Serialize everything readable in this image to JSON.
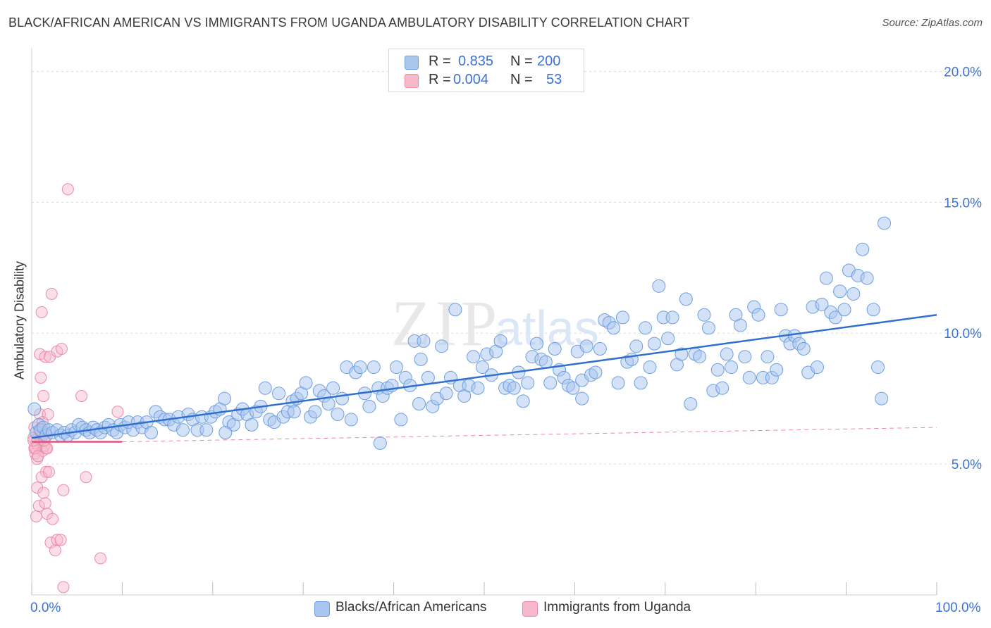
{
  "header": {
    "title": "BLACK/AFRICAN AMERICAN VS IMMIGRANTS FROM UGANDA AMBULATORY DISABILITY CORRELATION CHART",
    "source": "Source: ZipAtlas.com"
  },
  "watermark": "ZIPatlas",
  "legend_top": {
    "rows": [
      {
        "r_label": "R =",
        "r_value": "0.835",
        "n_label": "N =",
        "n_value": "200"
      },
      {
        "r_label": "R =",
        "r_value": "0.004",
        "n_label": "N =",
        "n_value": "53"
      }
    ]
  },
  "legend_bottom": {
    "items": [
      {
        "label": "Blacks/African Americans"
      },
      {
        "label": "Immigrants from Uganda"
      }
    ]
  },
  "colors": {
    "blue_fill": "#a9c6ef",
    "blue_stroke": "#6d9ee0",
    "blue_line": "#2f6fd0",
    "pink_fill": "#f7b8cb",
    "pink_stroke": "#ec8aa8",
    "pink_line": "#e0547e",
    "tick_text": "#3a72d8",
    "grid": "#dcdcdc"
  },
  "chart_data": {
    "type": "scatter",
    "title": "BLACK/AFRICAN AMERICAN VS IMMIGRANTS FROM UGANDA AMBULATORY DISABILITY CORRELATION CHART",
    "xlabel": "",
    "ylabel": "Ambulatory Disability",
    "xlim": [
      0,
      100
    ],
    "ylim": [
      0,
      20.9
    ],
    "x_tick_labels": [
      "0.0%",
      "100.0%"
    ],
    "y_ticks": [
      5,
      10,
      15,
      20
    ],
    "y_tick_labels": [
      "5.0%",
      "10.0%",
      "15.0%",
      "20.0%"
    ],
    "grid": true,
    "legend_position": "top-center",
    "series": [
      {
        "name": "Blacks/African Americans",
        "r": 0.835,
        "n": 200,
        "trend": {
          "x": [
            0,
            100
          ],
          "y": [
            6.0,
            10.7
          ]
        },
        "points": [
          [
            0.3,
            7.1
          ],
          [
            0.5,
            6.2
          ],
          [
            0.8,
            6.5
          ],
          [
            1.0,
            6.3
          ],
          [
            1.3,
            6.4
          ],
          [
            1.6,
            6.1
          ],
          [
            1.9,
            6.3
          ],
          [
            2.3,
            6.2
          ],
          [
            2.8,
            6.3
          ],
          [
            3.2,
            6.1
          ],
          [
            3.6,
            6.2
          ],
          [
            4.0,
            6.1
          ],
          [
            4.4,
            6.3
          ],
          [
            4.8,
            6.2
          ],
          [
            5.2,
            6.5
          ],
          [
            5.6,
            6.4
          ],
          [
            6.0,
            6.3
          ],
          [
            6.4,
            6.2
          ],
          [
            6.8,
            6.4
          ],
          [
            7.2,
            6.3
          ],
          [
            7.6,
            6.2
          ],
          [
            8.1,
            6.4
          ],
          [
            8.5,
            6.5
          ],
          [
            9.0,
            6.3
          ],
          [
            9.4,
            6.2
          ],
          [
            9.8,
            6.5
          ],
          [
            10.3,
            6.4
          ],
          [
            10.7,
            6.6
          ],
          [
            11.2,
            6.3
          ],
          [
            11.7,
            6.6
          ],
          [
            12.2,
            6.4
          ],
          [
            12.7,
            6.6
          ],
          [
            13.2,
            6.2
          ],
          [
            13.7,
            7.0
          ],
          [
            14.2,
            6.8
          ],
          [
            14.7,
            6.7
          ],
          [
            15.2,
            6.7
          ],
          [
            15.7,
            6.5
          ],
          [
            16.2,
            6.8
          ],
          [
            16.7,
            6.3
          ],
          [
            17.3,
            6.9
          ],
          [
            17.8,
            6.7
          ],
          [
            18.3,
            6.3
          ],
          [
            18.8,
            6.8
          ],
          [
            19.3,
            6.3
          ],
          [
            19.8,
            6.8
          ],
          [
            20.3,
            7.0
          ],
          [
            20.8,
            7.1
          ],
          [
            21.3,
            7.5
          ],
          [
            21.8,
            6.6
          ],
          [
            22.3,
            6.5
          ],
          [
            22.8,
            6.9
          ],
          [
            23.3,
            7.1
          ],
          [
            23.8,
            6.9
          ],
          [
            24.3,
            6.5
          ],
          [
            24.8,
            7.0
          ],
          [
            25.3,
            7.2
          ],
          [
            25.8,
            7.9
          ],
          [
            26.3,
            6.7
          ],
          [
            26.8,
            6.6
          ],
          [
            27.3,
            7.7
          ],
          [
            27.8,
            6.8
          ],
          [
            28.3,
            7.0
          ],
          [
            28.8,
            7.4
          ],
          [
            29.3,
            7.5
          ],
          [
            29.8,
            7.7
          ],
          [
            30.3,
            8.1
          ],
          [
            30.8,
            6.8
          ],
          [
            31.3,
            7.0
          ],
          [
            31.8,
            7.8
          ],
          [
            32.3,
            7.6
          ],
          [
            32.8,
            7.3
          ],
          [
            33.3,
            7.9
          ],
          [
            33.8,
            6.9
          ],
          [
            34.3,
            7.5
          ],
          [
            34.8,
            8.7
          ],
          [
            35.3,
            6.7
          ],
          [
            35.8,
            8.5
          ],
          [
            36.3,
            8.7
          ],
          [
            36.8,
            7.7
          ],
          [
            37.3,
            7.2
          ],
          [
            37.8,
            8.7
          ],
          [
            38.3,
            7.9
          ],
          [
            38.8,
            7.6
          ],
          [
            39.3,
            7.9
          ],
          [
            39.8,
            8.0
          ],
          [
            40.3,
            8.7
          ],
          [
            40.8,
            6.7
          ],
          [
            41.3,
            8.3
          ],
          [
            41.8,
            8.0
          ],
          [
            42.3,
            9.7
          ],
          [
            42.8,
            7.3
          ],
          [
            43.3,
            9.7
          ],
          [
            43.8,
            8.3
          ],
          [
            44.3,
            7.2
          ],
          [
            44.8,
            7.5
          ],
          [
            45.3,
            9.5
          ],
          [
            45.8,
            7.7
          ],
          [
            46.3,
            8.3
          ],
          [
            46.8,
            10.9
          ],
          [
            47.3,
            8.0
          ],
          [
            47.8,
            7.6
          ],
          [
            48.3,
            8.0
          ],
          [
            48.8,
            9.1
          ],
          [
            49.3,
            7.9
          ],
          [
            49.8,
            8.7
          ],
          [
            50.3,
            9.2
          ],
          [
            50.8,
            8.4
          ],
          [
            51.3,
            9.3
          ],
          [
            51.8,
            9.7
          ],
          [
            52.3,
            7.9
          ],
          [
            52.8,
            8.0
          ],
          [
            53.3,
            7.9
          ],
          [
            53.8,
            8.5
          ],
          [
            54.3,
            7.4
          ],
          [
            54.8,
            8.1
          ],
          [
            55.3,
            9.1
          ],
          [
            55.8,
            9.6
          ],
          [
            56.3,
            9.0
          ],
          [
            56.8,
            8.9
          ],
          [
            57.3,
            8.1
          ],
          [
            57.8,
            9.4
          ],
          [
            58.3,
            8.6
          ],
          [
            58.8,
            8.3
          ],
          [
            59.3,
            8.0
          ],
          [
            59.8,
            7.9
          ],
          [
            60.3,
            9.3
          ],
          [
            60.8,
            8.2
          ],
          [
            61.3,
            9.5
          ],
          [
            61.8,
            8.4
          ],
          [
            62.3,
            8.5
          ],
          [
            62.8,
            9.4
          ],
          [
            63.3,
            10.5
          ],
          [
            63.8,
            10.4
          ],
          [
            64.3,
            10.2
          ],
          [
            64.8,
            8.1
          ],
          [
            65.3,
            10.6
          ],
          [
            65.8,
            8.9
          ],
          [
            66.3,
            9.0
          ],
          [
            66.8,
            9.5
          ],
          [
            67.3,
            8.1
          ],
          [
            67.8,
            10.2
          ],
          [
            68.3,
            8.7
          ],
          [
            68.8,
            9.6
          ],
          [
            69.3,
            11.8
          ],
          [
            69.8,
            10.6
          ],
          [
            70.3,
            9.8
          ],
          [
            70.8,
            10.6
          ],
          [
            71.3,
            8.8
          ],
          [
            71.8,
            9.2
          ],
          [
            72.3,
            11.3
          ],
          [
            72.8,
            7.3
          ],
          [
            73.3,
            9.2
          ],
          [
            73.8,
            9.1
          ],
          [
            74.3,
            10.7
          ],
          [
            74.8,
            10.2
          ],
          [
            75.3,
            7.8
          ],
          [
            75.8,
            8.6
          ],
          [
            76.3,
            7.9
          ],
          [
            76.8,
            9.2
          ],
          [
            77.3,
            8.7
          ],
          [
            77.8,
            10.7
          ],
          [
            78.3,
            10.3
          ],
          [
            78.8,
            9.1
          ],
          [
            79.3,
            8.3
          ],
          [
            79.8,
            11.0
          ],
          [
            80.3,
            10.7
          ],
          [
            80.8,
            8.3
          ],
          [
            81.3,
            9.1
          ],
          [
            81.8,
            8.3
          ],
          [
            82.3,
            8.6
          ],
          [
            82.8,
            10.9
          ],
          [
            83.3,
            9.9
          ],
          [
            83.8,
            9.6
          ],
          [
            84.3,
            9.9
          ],
          [
            84.8,
            9.6
          ],
          [
            85.3,
            9.4
          ],
          [
            85.8,
            8.5
          ],
          [
            86.3,
            11.0
          ],
          [
            86.8,
            8.7
          ],
          [
            87.3,
            11.1
          ],
          [
            87.8,
            12.1
          ],
          [
            88.3,
            10.8
          ],
          [
            88.8,
            10.6
          ],
          [
            89.3,
            11.6
          ],
          [
            89.8,
            10.9
          ],
          [
            90.3,
            12.4
          ],
          [
            90.8,
            11.5
          ],
          [
            91.3,
            12.2
          ],
          [
            91.8,
            13.2
          ],
          [
            92.3,
            12.1
          ],
          [
            93.0,
            10.9
          ],
          [
            93.5,
            8.7
          ],
          [
            93.9,
            7.5
          ],
          [
            94.2,
            14.2
          ],
          [
            60.8,
            7.5
          ],
          [
            38.5,
            5.8
          ],
          [
            21.4,
            6.2
          ],
          [
            43.0,
            9.0
          ],
          [
            29.0,
            7.0
          ]
        ]
      },
      {
        "name": "Immigrants from Uganda",
        "r": 0.004,
        "n": 53,
        "trend": {
          "x": [
            0,
            10
          ],
          "y": [
            5.85,
            5.85
          ]
        },
        "trend_dashed": {
          "x": [
            10,
            100
          ],
          "y": [
            5.85,
            6.4
          ]
        },
        "points": [
          [
            0.2,
            6.0
          ],
          [
            0.3,
            5.6
          ],
          [
            0.4,
            5.4
          ],
          [
            0.5,
            5.8
          ],
          [
            0.6,
            5.2
          ],
          [
            0.7,
            5.7
          ],
          [
            0.8,
            6.3
          ],
          [
            0.9,
            6.9
          ],
          [
            1.0,
            5.9
          ],
          [
            1.1,
            6.4
          ],
          [
            1.2,
            5.5
          ],
          [
            1.3,
            6.1
          ],
          [
            1.4,
            5.7
          ],
          [
            1.5,
            6.2
          ],
          [
            1.6,
            5.6
          ],
          [
            0.3,
            6.4
          ],
          [
            0.6,
            4.1
          ],
          [
            0.9,
            9.2
          ],
          [
            1.0,
            8.3
          ],
          [
            1.1,
            10.8
          ],
          [
            1.3,
            7.6
          ],
          [
            1.5,
            9.1
          ],
          [
            1.6,
            4.7
          ],
          [
            1.7,
            5.6
          ],
          [
            1.8,
            6.9
          ],
          [
            2.0,
            9.1
          ],
          [
            2.2,
            11.5
          ],
          [
            2.8,
            9.3
          ],
          [
            3.3,
            9.4
          ],
          [
            3.5,
            4.0
          ],
          [
            4.0,
            15.5
          ],
          [
            5.5,
            7.6
          ],
          [
            6.0,
            4.5
          ],
          [
            9.5,
            7.0
          ],
          [
            0.5,
            3.0
          ],
          [
            0.8,
            3.4
          ],
          [
            1.1,
            4.5
          ],
          [
            1.3,
            3.9
          ],
          [
            1.5,
            3.5
          ],
          [
            1.7,
            3.1
          ],
          [
            1.9,
            4.7
          ],
          [
            2.1,
            2.0
          ],
          [
            2.3,
            2.9
          ],
          [
            2.6,
            1.7
          ],
          [
            2.8,
            2.1
          ],
          [
            3.2,
            2.1
          ],
          [
            3.5,
            0.3
          ],
          [
            7.6,
            1.4
          ],
          [
            0.4,
            5.6
          ],
          [
            0.7,
            5.3
          ],
          [
            1.2,
            6.6
          ],
          [
            1.4,
            5.9
          ],
          [
            0.2,
            5.9
          ]
        ]
      }
    ]
  }
}
